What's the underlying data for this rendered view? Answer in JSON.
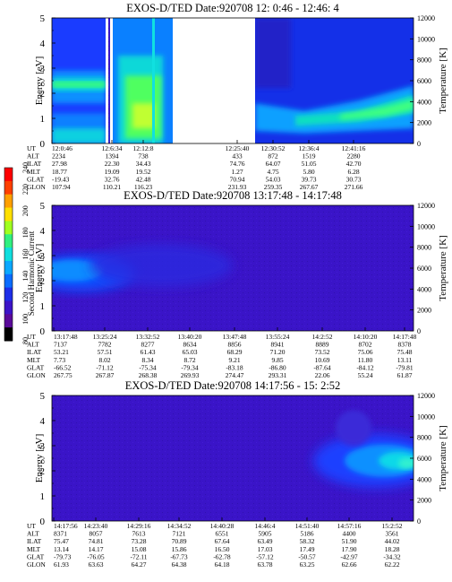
{
  "panels": [
    {
      "title": "EXOS-D/TED   Date:920708   12: 0:46 - 12:46: 4",
      "chart_data": {
        "type": "heatmap",
        "ylabel": "Energy [eV]",
        "y2label": "Temperature [K]",
        "ylim": [
          0,
          5
        ],
        "y2lim": [
          0,
          12000
        ],
        "yticks": [
          "0",
          "1",
          "2",
          "3",
          "4",
          "5"
        ],
        "y2ticks": [
          "0",
          "2000",
          "4000",
          "6000",
          "8000",
          "10000",
          "12000"
        ],
        "data_gaps": [
          "12:06:34 - 12:06:38",
          "12:13:10 - 12:25:40"
        ],
        "columns": [
          {
            "UT": "12:0:46",
            "ALT": "2234",
            "ILAT": "27.98",
            "MLT": "18.77",
            "GLAT": "-19.43",
            "GLON": "107.94"
          },
          {
            "UT": "12:6:34",
            "ALT": "1394",
            "ILAT": "22.30",
            "MLT": "19.09",
            "GLAT": "32.76",
            "GLON": "110.21"
          },
          {
            "UT": "12:12:8",
            "ALT": "738",
            "ILAT": "34.43",
            "MLT": "19.52",
            "GLAT": "42.48",
            "GLON": "116.23"
          },
          {
            "UT": "12:25:40",
            "ALT": "433",
            "ILAT": "74.76",
            "MLT": "1.27",
            "GLAT": "70.94",
            "GLON": "231.93"
          },
          {
            "UT": "12:30:52",
            "ALT": "872",
            "ILAT": "64.07",
            "MLT": "4.75",
            "GLAT": "54.03",
            "GLON": "259.35"
          },
          {
            "UT": "12:36:4",
            "ALT": "1519",
            "ILAT": "51.05",
            "MLT": "5.80",
            "GLAT": "39.73",
            "GLON": "267.67"
          },
          {
            "UT": "12:41:16",
            "ALT": "2280",
            "ILAT": "42.70",
            "MLT": "6.28",
            "GLAT": "30.73",
            "GLON": "271.66"
          }
        ]
      }
    },
    {
      "title": "EXOS-D/TED   Date:920708   13:17:48 - 14:17:48",
      "chart_data": {
        "type": "heatmap",
        "ylabel": "Energy [eV]",
        "y2label": "Temperature [K]",
        "ylim": [
          0,
          5
        ],
        "y2lim": [
          0,
          12000
        ],
        "yticks": [
          "0",
          "1",
          "2",
          "3",
          "4",
          "5"
        ],
        "y2ticks": [
          "0",
          "2000",
          "4000",
          "6000",
          "8000",
          "10000",
          "12000"
        ],
        "columns": [
          {
            "UT": "13:17:48",
            "ALT": "7137",
            "ILAT": "53.21",
            "MLT": "7.73",
            "GLAT": "-66.52",
            "GLON": "267.75"
          },
          {
            "UT": "13:25:24",
            "ALT": "7782",
            "ILAT": "57.51",
            "MLT": "8.02",
            "GLAT": "-71.12",
            "GLON": "267.87"
          },
          {
            "UT": "13:32:52",
            "ALT": "8277",
            "ILAT": "61.43",
            "MLT": "8.34",
            "GLAT": "-75.34",
            "GLON": "268.38"
          },
          {
            "UT": "13:40:20",
            "ALT": "8634",
            "ILAT": "65.03",
            "MLT": "8.72",
            "GLAT": "-79.34",
            "GLON": "269.93"
          },
          {
            "UT": "13:47:48",
            "ALT": "8856",
            "ILAT": "68.29",
            "MLT": "9.21",
            "GLAT": "-83.18",
            "GLON": "274.47"
          },
          {
            "UT": "13:55:24",
            "ALT": "8941",
            "ILAT": "71.20",
            "MLT": "9.85",
            "GLAT": "-86.80",
            "GLON": "293.31"
          },
          {
            "UT": "14:2:52",
            "ALT": "8889",
            "ILAT": "73.52",
            "MLT": "10.69",
            "GLAT": "-87.64",
            "GLON": "22.06"
          },
          {
            "UT": "14:10:20",
            "ALT": "8702",
            "ILAT": "75.06",
            "MLT": "11.80",
            "GLAT": "-84.12",
            "GLON": "55.24"
          },
          {
            "UT": "14:17:48",
            "ALT": "8378",
            "ILAT": "75.48",
            "MLT": "13.11",
            "GLAT": "-79.81",
            "GLON": "61.87"
          }
        ]
      }
    },
    {
      "title": "EXOS-D/TED   Date:920708   14:17:56 - 15: 2:52",
      "chart_data": {
        "type": "heatmap",
        "ylabel": "Energy [eV]",
        "y2label": "Temperature [K]",
        "ylim": [
          0,
          5
        ],
        "y2lim": [
          0,
          12000
        ],
        "yticks": [
          "0",
          "1",
          "2",
          "3",
          "4",
          "5"
        ],
        "y2ticks": [
          "0",
          "2000",
          "4000",
          "6000",
          "8000",
          "10000",
          "12000"
        ],
        "columns": [
          {
            "UT": "14:17:56",
            "ALT": "8371",
            "ILAT": "75.47",
            "MLT": "13.14",
            "GLAT": "-79.73",
            "GLON": "61.93"
          },
          {
            "UT": "14:23:40",
            "ALT": "8057",
            "ILAT": "74.81",
            "MLT": "14.17",
            "GLAT": "-76.05",
            "GLON": "63.63"
          },
          {
            "UT": "14:29:16",
            "ALT": "7613",
            "ILAT": "73.28",
            "MLT": "15.08",
            "GLAT": "-72.11",
            "GLON": "64.27"
          },
          {
            "UT": "14:34:52",
            "ALT": "7121",
            "ILAT": "70.89",
            "MLT": "15.86",
            "GLAT": "-67.73",
            "GLON": "64.38"
          },
          {
            "UT": "14:40:28",
            "ALT": "6551",
            "ILAT": "67.64",
            "MLT": "16.50",
            "GLAT": "-62.78",
            "GLON": "64.18"
          },
          {
            "UT": "14:46:4",
            "ALT": "5905",
            "ILAT": "63.49",
            "MLT": "17.03",
            "GLAT": "-57.12",
            "GLON": "63.78"
          },
          {
            "UT": "14:51:40",
            "ALT": "5186",
            "ILAT": "58.32",
            "MLT": "17.49",
            "GLAT": "-50.57",
            "GLON": "63.25"
          },
          {
            "UT": "14:57:16",
            "ALT": "4400",
            "ILAT": "51.90",
            "MLT": "17.90",
            "GLAT": "-42.97",
            "GLON": "62.66"
          },
          {
            "UT": "15:2:52",
            "ALT": "3561",
            "ILAT": "44.02",
            "MLT": "18.28",
            "GLAT": "-34.32",
            "GLON": "62.22"
          }
        ]
      }
    }
  ],
  "row_labels": [
    "UT",
    "ALT",
    "ILAT",
    "MLT",
    "GLAT",
    "GLON"
  ],
  "colorbar": {
    "label": "Second Harmonic Current",
    "range": [
      80,
      240
    ],
    "ticks": [
      "80",
      "100",
      "120",
      "140",
      "160",
      "180",
      "200",
      "220",
      "240"
    ]
  },
  "colors": {
    "background_fill": "#3a14c8",
    "colormap": [
      "#000000",
      "#5a0a9a",
      "#3a14c8",
      "#1040ff",
      "#0a90ff",
      "#10e0e0",
      "#30ff60",
      "#d0ff20",
      "#ffe000",
      "#ff8000",
      "#ff0000"
    ]
  }
}
